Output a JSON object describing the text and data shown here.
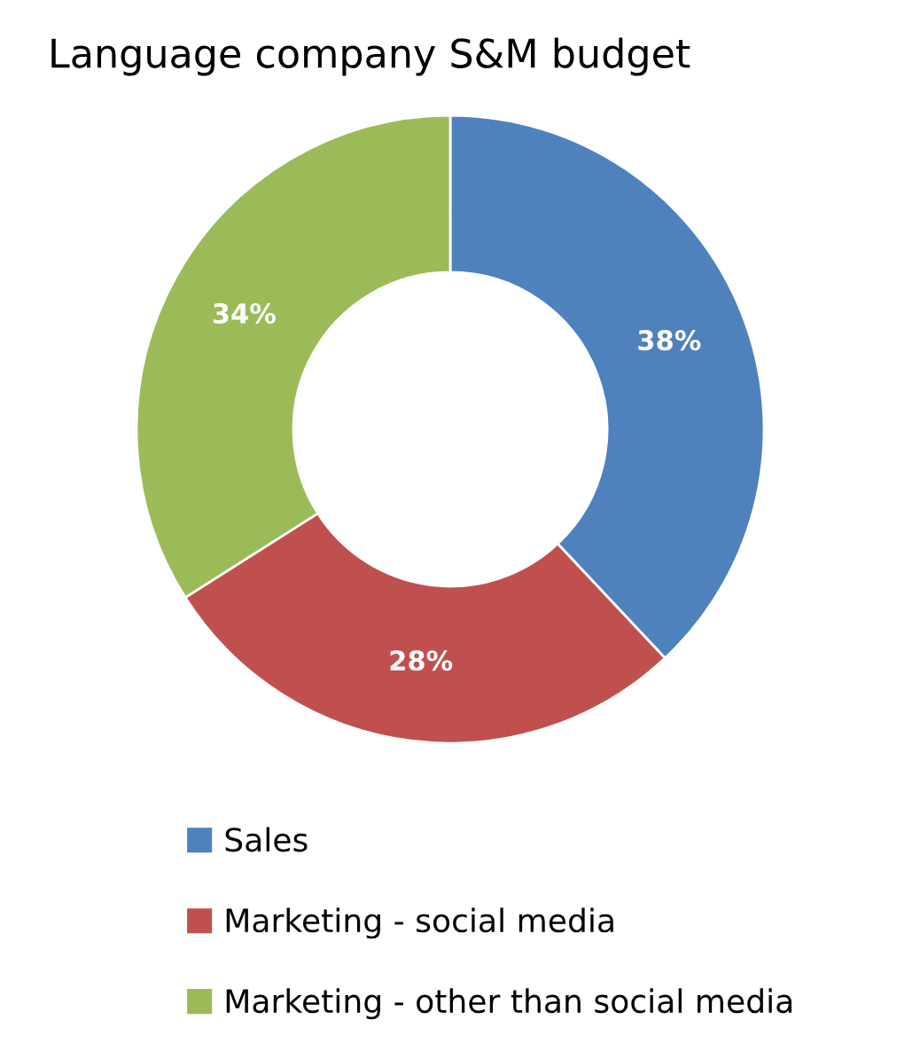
{
  "chart_data": {
    "type": "donut",
    "title": "Language company S&M budget",
    "categories": [
      "Sales",
      "Marketing - social media",
      "Marketing - other than social media"
    ],
    "values": [
      38,
      28,
      34
    ],
    "colors": [
      "#4f81bd",
      "#c0504d",
      "#9bbb59"
    ],
    "value_labels": [
      "38%",
      "28%",
      "34%"
    ],
    "legend": "bottom"
  }
}
